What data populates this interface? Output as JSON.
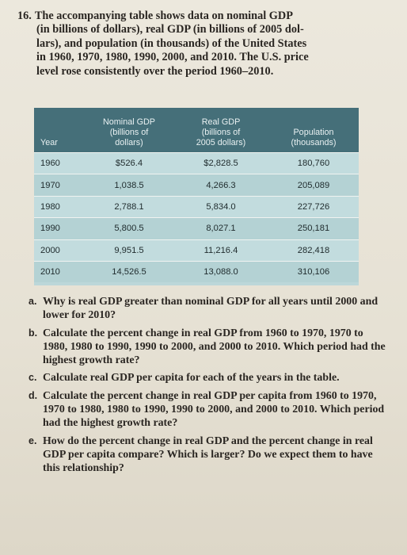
{
  "problem": {
    "number": "16.",
    "lines": [
      "The accompanying table shows data on nominal GDP",
      "(in billions of dollars), real GDP (in billions of 2005 dol-",
      "lars), and population (in thousands) of the United States",
      "in 1960, 1970, 1980, 1990, 2000, and 2010. The U.S. price",
      "level rose consistently over the period 1960–2010."
    ]
  },
  "table": {
    "headers": {
      "year": "Year",
      "nominal": [
        "Nominal GDP",
        "(billions of",
        "dollars)"
      ],
      "real": [
        "Real GDP",
        "(billions of",
        "2005 dollars)"
      ],
      "population": [
        "Population",
        "(thousands)"
      ]
    },
    "rows": [
      {
        "year": "1960",
        "nominal": "$526.4",
        "real": "$2,828.5",
        "population": "180,760"
      },
      {
        "year": "1970",
        "nominal": "1,038.5",
        "real": "4,266.3",
        "population": "205,089"
      },
      {
        "year": "1980",
        "nominal": "2,788.1",
        "real": "5,834.0",
        "population": "227,726"
      },
      {
        "year": "1990",
        "nominal": "5,800.5",
        "real": "8,027.1",
        "population": "250,181"
      },
      {
        "year": "2000",
        "nominal": "9,951.5",
        "real": "11,216.4",
        "population": "282,418"
      },
      {
        "year": "2010",
        "nominal": "14,526.5",
        "real": "13,088.0",
        "population": "310,106"
      }
    ]
  },
  "questions": [
    {
      "label": "a.",
      "text": "Why is real GDP greater than nominal GDP for all years until 2000 and lower for 2010?"
    },
    {
      "label": "b.",
      "text": "Calculate the percent change in real GDP from 1960 to 1970, 1970 to 1980, 1980 to 1990, 1990 to 2000, and 2000 to 2010. Which period had the highest growth rate?"
    },
    {
      "label": "c.",
      "text": "Calculate real GDP per capita for each of the years in the table."
    },
    {
      "label": "d.",
      "text": "Calculate the percent change in real GDP per capita from 1960 to 1970, 1970 to 1980, 1980 to 1990, 1990 to 2000, and 2000 to 2010. Which period had the highest growth rate?"
    },
    {
      "label": "e.",
      "text": "How do the percent change in real GDP and the percent change in real GDP per capita compare? Which is larger? Do we expect them to have this relationship?"
    }
  ]
}
